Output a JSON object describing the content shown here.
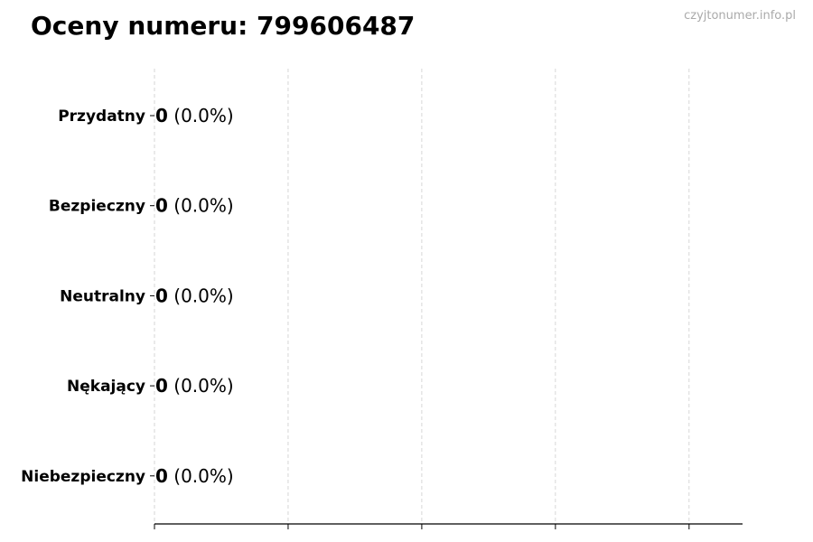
{
  "title": "Oceny numeru: 799606487",
  "watermark": "czyjtonumer.info.pl",
  "chart_data": {
    "type": "bar",
    "orientation": "horizontal",
    "title": "Oceny numeru: 799606487",
    "categories": [
      "Przydatny",
      "Bezpieczny",
      "Neutralny",
      "Nękający",
      "Niebezpieczny"
    ],
    "values": [
      0,
      0,
      0,
      0,
      0
    ],
    "labels": [
      {
        "count": "0",
        "pct": "(0.0%)"
      },
      {
        "count": "0",
        "pct": "(0.0%)"
      },
      {
        "count": "0",
        "pct": "(0.0%)"
      },
      {
        "count": "0",
        "pct": "(0.0%)"
      },
      {
        "count": "0",
        "pct": "(0.0%)"
      }
    ],
    "xlim": [
      0,
      4.4
    ],
    "xticks": [
      0,
      1,
      2,
      3,
      4
    ],
    "xtick_labels_shown": false,
    "grid": "x-dashed",
    "bar_edge_color": "#000000",
    "grid_color": "#cccccc"
  }
}
